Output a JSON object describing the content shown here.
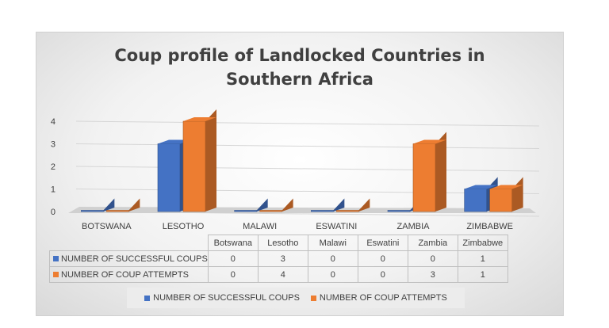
{
  "chart_data": {
    "type": "bar",
    "variant": "3d-clustered",
    "title": "Coup profile of Landlocked Countries in Southern Africa",
    "title_lines": [
      "Coup profile of Landlocked Countries in",
      "Southern Africa"
    ],
    "axis_categories": [
      "BOTSWANA",
      "LESOTHO",
      "MALAWI",
      "ESWATINI",
      "ZAMBIA",
      "ZIMBABWE"
    ],
    "categories": [
      "Botswana",
      "Lesotho",
      "Malawi",
      "Eswatini",
      "Zambia",
      "Zimbabwe"
    ],
    "series": [
      {
        "name": "NUMBER OF SUCCESSFUL COUPS",
        "values": [
          0,
          3,
          0,
          0,
          0,
          1
        ],
        "color": "#4472C4"
      },
      {
        "name": "NUMBER OF COUP ATTEMPTS",
        "values": [
          0,
          4,
          0,
          0,
          3,
          1
        ],
        "color": "#ED7D31"
      }
    ],
    "y_ticks": [
      "0",
      "1",
      "2",
      "3",
      "4"
    ],
    "ylim": [
      0,
      4
    ],
    "grid": true,
    "legend": "bottom",
    "data_table": true
  }
}
